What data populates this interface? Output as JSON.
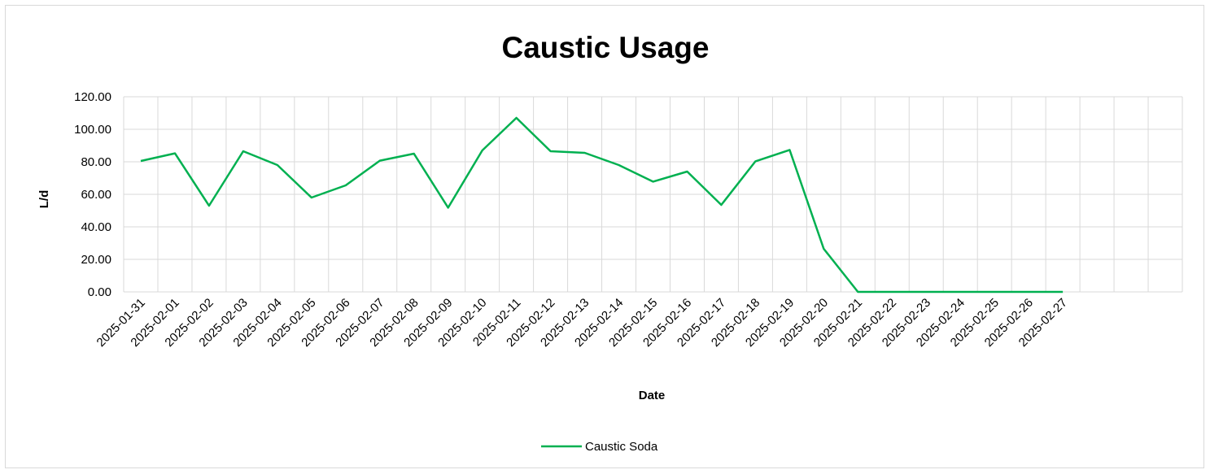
{
  "chart_data": {
    "type": "line",
    "title": "Caustic Usage",
    "xlabel": "Date",
    "ylabel": "L/d",
    "ylim": [
      0,
      120
    ],
    "y_ticks": [
      "0.00",
      "20.00",
      "40.00",
      "60.00",
      "80.00",
      "100.00",
      "120.00"
    ],
    "grid": true,
    "legend_position": "bottom",
    "categories": [
      "2025-01-31",
      "2025-02-01",
      "2025-02-02",
      "2025-02-03",
      "2025-02-04",
      "2025-02-05",
      "2025-02-06",
      "2025-02-07",
      "2025-02-08",
      "2025-02-09",
      "2025-02-10",
      "2025-02-11",
      "2025-02-12",
      "2025-02-13",
      "2025-02-14",
      "2025-02-15",
      "2025-02-16",
      "2025-02-17",
      "2025-02-18",
      "2025-02-19",
      "2025-02-20",
      "2025-02-21",
      "2025-02-22",
      "2025-02-23",
      "2025-02-24",
      "2025-02-25",
      "2025-02-26",
      "2025-02-27"
    ],
    "series": [
      {
        "name": "Caustic Soda",
        "color": "#00b050",
        "values": [
          80.5,
          85.2,
          53.0,
          86.5,
          78.0,
          58.0,
          65.5,
          80.7,
          85.0,
          51.8,
          87.0,
          107.0,
          86.5,
          85.5,
          78.0,
          67.8,
          74.0,
          53.5,
          80.3,
          87.3,
          26.5,
          0,
          0,
          0,
          0,
          0,
          0,
          0
        ]
      }
    ]
  }
}
